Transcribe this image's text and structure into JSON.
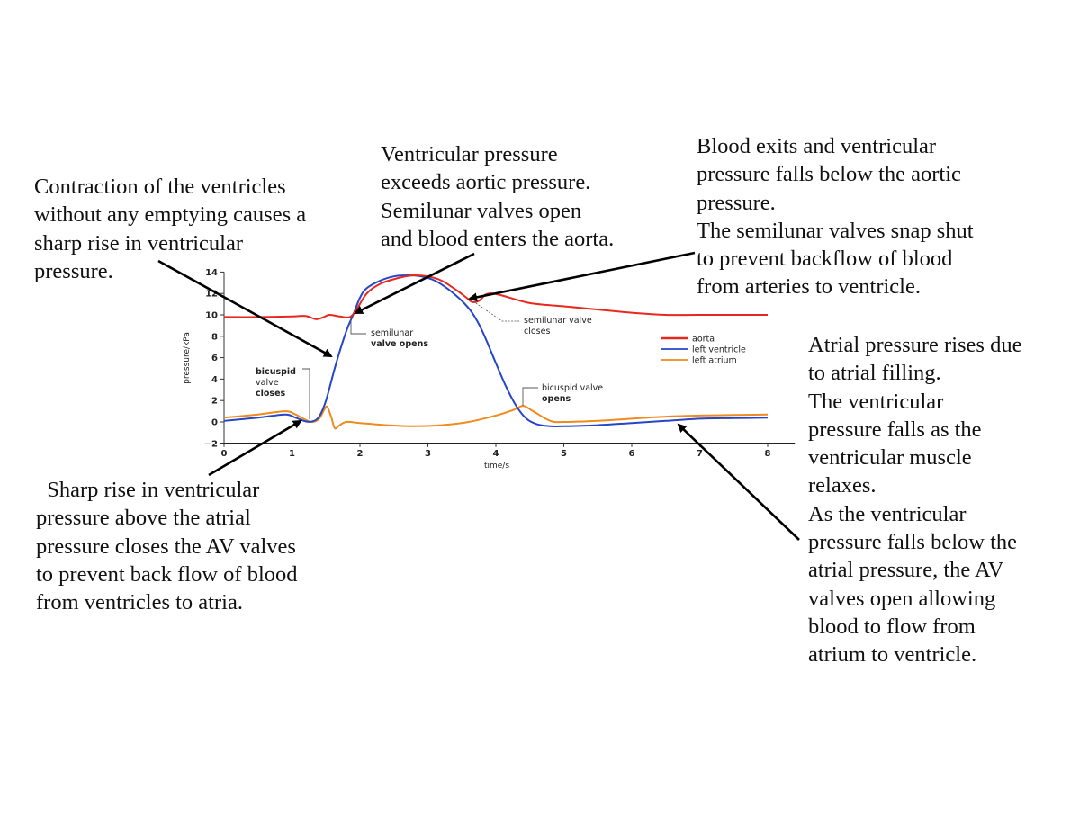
{
  "notes": {
    "contraction": "Contraction of the ventricles\nwithout any emptying causes a\nsharp rise in ventricular\npressure.",
    "semilunar_open": "Ventricular pressure\nexceeds aortic pressure.\nSemilunar valves open\nand blood enters the aorta.",
    "semilunar_close": "Blood exits and ventricular\npressure falls below the aortic\npressure.\nThe semilunar valves snap shut\nto prevent backflow of blood\nfrom arteries to ventricle.",
    "atrial_filling": "Atrial pressure rises due\nto atrial filling.\nThe ventricular\npressure falls as the\nventricular muscle\nrelaxes.\nAs the ventricular\npressure falls below the\natrial pressure, the AV\nvalves open allowing\nblood to flow from\natrium to ventricle.",
    "av_close": "  Sharp rise in ventricular\npressure above the atrial\npressure closes the AV valves\nto prevent back flow of blood\nfrom ventricles to atria."
  },
  "chart_data": {
    "type": "line",
    "title": "",
    "xlabel": "time/s",
    "ylabel": "pressure/kPa",
    "xlim": [
      0,
      8
    ],
    "ylim": [
      -2,
      14
    ],
    "xticks": [
      0,
      1,
      2,
      3,
      4,
      5,
      6,
      7,
      8
    ],
    "yticks": [
      -2,
      0,
      2,
      4,
      6,
      8,
      10,
      12,
      14
    ],
    "grid": false,
    "legend_position": "upper right",
    "series": [
      {
        "name": "aorta",
        "color": "#e8281e",
        "x": [
          0,
          0.5,
          1.0,
          1.2,
          1.35,
          1.45,
          1.55,
          1.7,
          1.85,
          1.95,
          2.1,
          2.3,
          2.6,
          2.8,
          3.0,
          3.2,
          3.4,
          3.55,
          3.65,
          3.75,
          3.85,
          3.95,
          4.1,
          4.5,
          5.0,
          5.5,
          6.0,
          6.5,
          7.0,
          8.0
        ],
        "y": [
          9.8,
          9.8,
          9.85,
          9.9,
          9.6,
          9.75,
          10.0,
          9.85,
          9.8,
          10.5,
          12.0,
          12.9,
          13.5,
          13.7,
          13.6,
          13.2,
          12.4,
          11.7,
          11.2,
          11.3,
          11.9,
          12.0,
          11.8,
          11.1,
          10.8,
          10.5,
          10.2,
          10.0,
          10.0,
          10.0
        ]
      },
      {
        "name": "left ventricle",
        "color": "#2446c8",
        "x": [
          0,
          0.5,
          0.9,
          1.05,
          1.2,
          1.3,
          1.4,
          1.5,
          1.65,
          1.8,
          1.9,
          2.0,
          2.1,
          2.3,
          2.5,
          2.7,
          2.9,
          3.1,
          3.3,
          3.5,
          3.65,
          3.8,
          4.0,
          4.15,
          4.3,
          4.45,
          4.6,
          4.8,
          5.0,
          5.5,
          6.0,
          6.5,
          7.0,
          7.5,
          8.0
        ],
        "y": [
          0.1,
          0.4,
          0.7,
          0.4,
          0.05,
          0.05,
          0.5,
          2.0,
          5.5,
          8.5,
          10.0,
          11.6,
          12.5,
          13.2,
          13.6,
          13.7,
          13.6,
          13.2,
          12.4,
          11.3,
          10.2,
          8.5,
          5.5,
          3.3,
          1.5,
          0.3,
          -0.2,
          -0.4,
          -0.4,
          -0.3,
          -0.1,
          0.1,
          0.3,
          0.35,
          0.4
        ]
      },
      {
        "name": "left atrium",
        "color": "#f08a1c",
        "x": [
          0,
          0.5,
          0.9,
          1.05,
          1.2,
          1.3,
          1.4,
          1.48,
          1.52,
          1.58,
          1.63,
          1.7,
          1.8,
          2.0,
          2.4,
          2.8,
          3.2,
          3.6,
          4.0,
          4.25,
          4.4,
          4.55,
          4.8,
          5.0,
          5.5,
          6.0,
          6.5,
          7.0,
          7.5,
          8.0
        ],
        "y": [
          0.4,
          0.7,
          1.0,
          0.7,
          0.2,
          0.0,
          0.3,
          1.2,
          1.4,
          0.4,
          -0.6,
          -0.3,
          0.0,
          -0.1,
          -0.3,
          -0.4,
          -0.3,
          0.0,
          0.6,
          1.1,
          1.5,
          1.0,
          0.1,
          0.0,
          0.1,
          0.3,
          0.5,
          0.6,
          0.65,
          0.7
        ]
      }
    ],
    "annotations": [
      {
        "text": "bicuspid valve closes",
        "x": 1.25,
        "y": 0
      },
      {
        "text": "semilunar valve opens",
        "x": 1.9,
        "y": 10
      },
      {
        "text": "semilunar valve closes",
        "x": 3.6,
        "y": 11.5
      },
      {
        "text": "bicuspid valve opens",
        "x": 4.4,
        "y": 1.5
      }
    ]
  },
  "chart_labels": {
    "xlabel": "time/s",
    "ylabel": "pressure/kPa",
    "anno_bicuspid_close": [
      "bicuspid",
      "valve",
      "closes"
    ],
    "anno_semilunar_open": [
      "semilunar",
      "valve opens"
    ],
    "anno_semilunar_close": [
      "semilunar valve",
      "closes"
    ],
    "anno_bicuspid_open": [
      "bicuspid valve",
      "opens"
    ],
    "legend": [
      "aorta",
      "left ventricle",
      "left atrium"
    ]
  }
}
